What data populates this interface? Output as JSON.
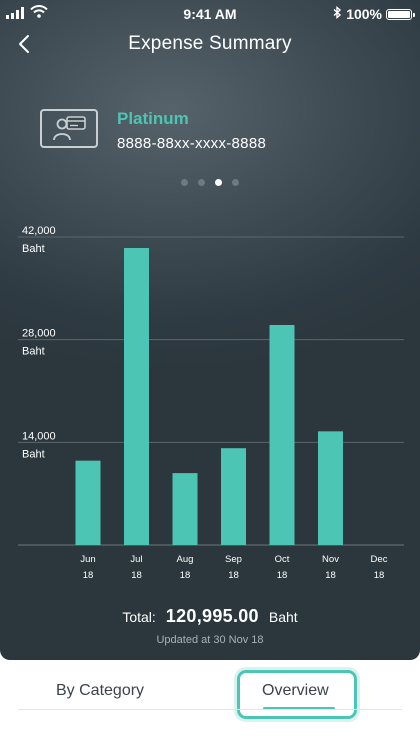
{
  "status_bar": {
    "time": "9:41 AM",
    "battery": "100%"
  },
  "header": {
    "title": "Expense Summary"
  },
  "card": {
    "tier": "Platinum",
    "number": "8888-88xx-xxxx-8888"
  },
  "pager": {
    "count": 4,
    "active_index": 2
  },
  "chart_data": {
    "type": "bar",
    "categories": [
      "Jun",
      "Jul",
      "Aug",
      "Sep",
      "Oct",
      "Nov",
      "Dec"
    ],
    "category_years": [
      "18",
      "18",
      "18",
      "18",
      "18",
      "18",
      "18"
    ],
    "values": [
      11500,
      40500,
      9800,
      13200,
      30000,
      15500,
      0
    ],
    "ylim": [
      0,
      42000
    ],
    "yticks": [
      14000,
      28000,
      42000
    ],
    "ytick_labels": [
      "14,000",
      "28,000",
      "42,000"
    ],
    "yunit": "Baht",
    "grid": true,
    "bar_color": "#4cc5b4"
  },
  "summary": {
    "total_label": "Total:",
    "total_amount": "120,995.00",
    "currency": "Baht",
    "updated": "Updated at 30 Nov 18"
  },
  "tabs": [
    {
      "label": "By Category",
      "active": false
    },
    {
      "label": "Overview",
      "active": true
    }
  ],
  "colors": {
    "accent": "#4cc5b4",
    "background_dark": "#2f3b42"
  }
}
